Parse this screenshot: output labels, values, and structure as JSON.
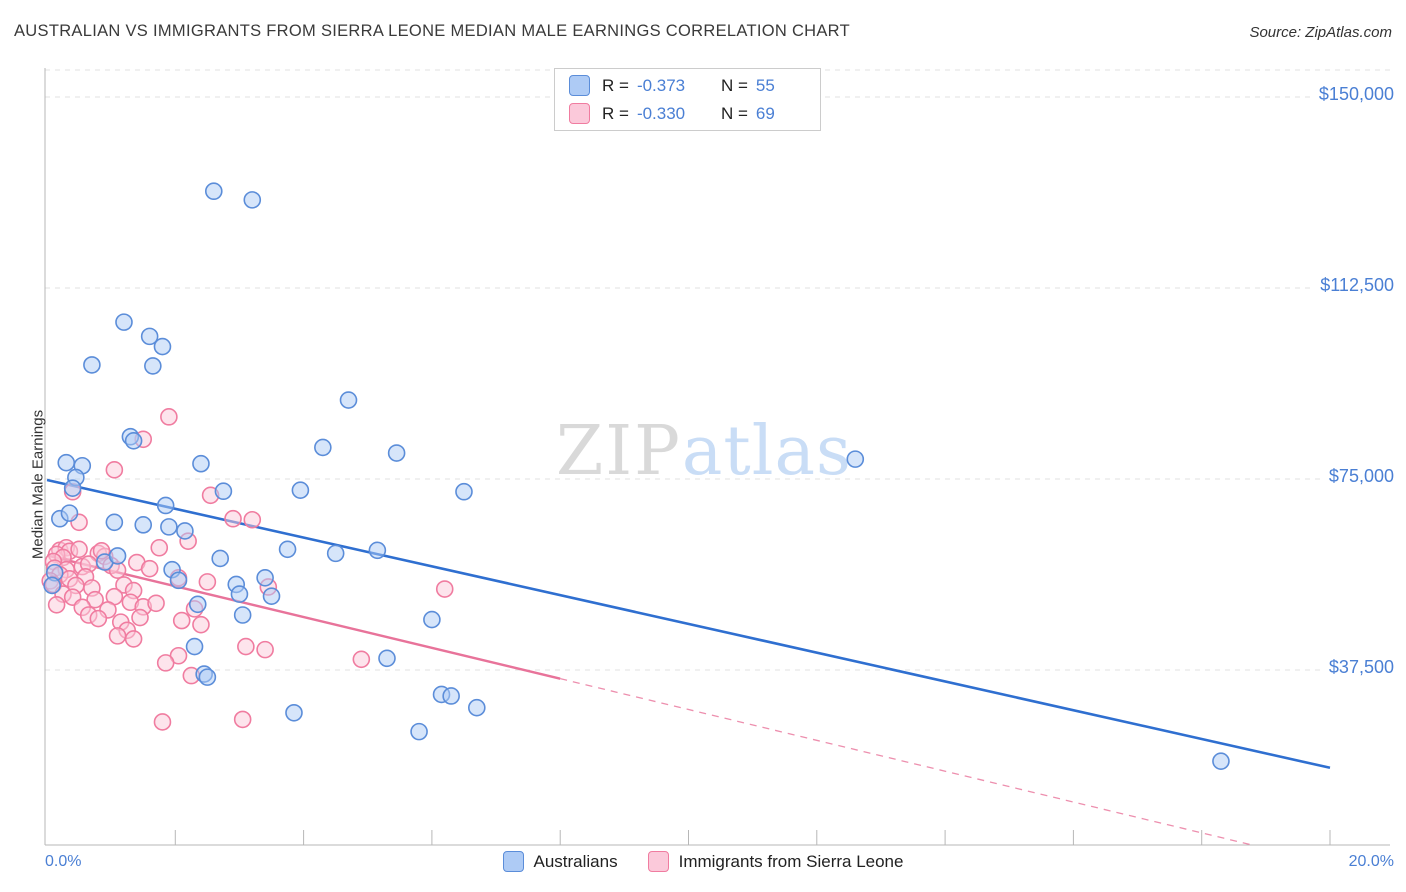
{
  "header": {
    "title": "AUSTRALIAN VS IMMIGRANTS FROM SIERRA LEONE MEDIAN MALE EARNINGS CORRELATION CHART",
    "source": "Source: ZipAtlas.com"
  },
  "stats_legend": {
    "rows": [
      {
        "series": "Australians",
        "r_label": "R =",
        "r_value": "-0.373",
        "n_label": "N =",
        "n_value": "55"
      },
      {
        "series": "Immigrants from Sierra Leone",
        "r_label": "R =",
        "r_value": "-0.330",
        "n_label": "N =",
        "n_value": "69"
      }
    ]
  },
  "watermark": {
    "zip": "ZIP",
    "atlas": "atlas"
  },
  "colors": {
    "blue-stroke": "#5b8dd9",
    "blue-fill": "#aecbf5",
    "pink-stroke": "#f07ca0",
    "pink-fill": "#fbc9da",
    "trend-blue": "#2f6fd0",
    "trend-pink": "#e8739a",
    "label-blue": "#4a7fd4",
    "grid": "#e0e0e0",
    "axis": "#b7b7b7"
  },
  "chart_data": {
    "type": "scatter",
    "title": "AUSTRALIAN VS IMMIGRANTS FROM SIERRA LEONE MEDIAN MALE EARNINGS CORRELATION CHART",
    "x_axis": {
      "label": "",
      "unit": "%",
      "min": 0,
      "max": 20,
      "min_label": "0.0%",
      "max_label": "20.0%",
      "tick_step": 2
    },
    "y_axis": {
      "label": "Median Male Earnings",
      "unit": "$",
      "tick_values": [
        150000,
        112500,
        75000,
        37500
      ],
      "tick_labels": [
        "$150,000",
        "$112,500",
        "$75,000",
        "$37,500"
      ],
      "grid": "dashed-horizontal"
    },
    "legend_position": "top-center-and-bottom-center",
    "series": [
      {
        "name": "Australians",
        "R": -0.373,
        "N": 55,
        "color": "#5b8dd9",
        "points": [
          [
            2.6,
            131500
          ],
          [
            3.2,
            129800
          ],
          [
            1.2,
            105800
          ],
          [
            1.6,
            103000
          ],
          [
            1.65,
            97200
          ],
          [
            1.8,
            101000
          ],
          [
            0.7,
            97400
          ],
          [
            4.7,
            90500
          ],
          [
            1.3,
            83300
          ],
          [
            1.35,
            82500
          ],
          [
            4.3,
            81200
          ],
          [
            5.45,
            80100
          ],
          [
            12.6,
            78900
          ],
          [
            0.3,
            78200
          ],
          [
            0.55,
            77600
          ],
          [
            2.4,
            78000
          ],
          [
            0.45,
            75300
          ],
          [
            0.4,
            73200
          ],
          [
            2.75,
            72600
          ],
          [
            3.95,
            72800
          ],
          [
            6.5,
            72500
          ],
          [
            1.85,
            69800
          ],
          [
            0.2,
            67200
          ],
          [
            1.05,
            66500
          ],
          [
            1.5,
            66000
          ],
          [
            2.15,
            64800
          ],
          [
            1.9,
            65600
          ],
          [
            3.75,
            61200
          ],
          [
            4.5,
            60400
          ],
          [
            5.15,
            61000
          ],
          [
            0.9,
            58700
          ],
          [
            0.12,
            56600
          ],
          [
            1.95,
            57200
          ],
          [
            2.7,
            59400
          ],
          [
            3.4,
            55600
          ],
          [
            2.95,
            54300
          ],
          [
            0.08,
            54100
          ],
          [
            3.0,
            52400
          ],
          [
            3.5,
            52000
          ],
          [
            2.35,
            50400
          ],
          [
            3.05,
            48300
          ],
          [
            6.0,
            47400
          ],
          [
            2.3,
            42100
          ],
          [
            5.3,
            39800
          ],
          [
            2.45,
            36700
          ],
          [
            2.5,
            36100
          ],
          [
            6.15,
            32700
          ],
          [
            6.3,
            32400
          ],
          [
            6.7,
            30100
          ],
          [
            3.85,
            29100
          ],
          [
            5.8,
            25400
          ],
          [
            18.3,
            19600
          ],
          [
            0.35,
            68300
          ],
          [
            1.1,
            59900
          ],
          [
            2.05,
            55100
          ]
        ]
      },
      {
        "name": "Immigrants from Sierra Leone",
        "R": -0.33,
        "N": 69,
        "color": "#f07ca0",
        "points": [
          [
            1.9,
            87200
          ],
          [
            1.5,
            82800
          ],
          [
            1.05,
            76800
          ],
          [
            0.4,
            72500
          ],
          [
            2.55,
            71800
          ],
          [
            0.5,
            66500
          ],
          [
            2.9,
            67200
          ],
          [
            3.2,
            67000
          ],
          [
            0.2,
            61000
          ],
          [
            0.3,
            61500
          ],
          [
            0.35,
            60800
          ],
          [
            0.15,
            60200
          ],
          [
            0.25,
            59600
          ],
          [
            0.5,
            61200
          ],
          [
            0.8,
            60400
          ],
          [
            0.9,
            59800
          ],
          [
            0.85,
            60900
          ],
          [
            1.75,
            61500
          ],
          [
            2.2,
            62800
          ],
          [
            0.1,
            58800
          ],
          [
            0.12,
            57500
          ],
          [
            0.3,
            57200
          ],
          [
            0.55,
            57800
          ],
          [
            0.65,
            58300
          ],
          [
            1.0,
            58000
          ],
          [
            1.1,
            57100
          ],
          [
            1.4,
            58600
          ],
          [
            1.6,
            57400
          ],
          [
            0.2,
            56200
          ],
          [
            0.35,
            55400
          ],
          [
            0.6,
            55800
          ],
          [
            0.05,
            55000
          ],
          [
            0.1,
            54300
          ],
          [
            0.45,
            54100
          ],
          [
            0.7,
            53600
          ],
          [
            1.2,
            54200
          ],
          [
            1.35,
            53100
          ],
          [
            2.05,
            55600
          ],
          [
            2.5,
            54800
          ],
          [
            6.2,
            53400
          ],
          [
            3.45,
            53800
          ],
          [
            0.25,
            52400
          ],
          [
            0.4,
            51800
          ],
          [
            0.75,
            51300
          ],
          [
            1.05,
            51900
          ],
          [
            1.3,
            50800
          ],
          [
            0.15,
            50300
          ],
          [
            0.55,
            49800
          ],
          [
            0.95,
            49300
          ],
          [
            1.5,
            49900
          ],
          [
            1.7,
            50600
          ],
          [
            2.3,
            49500
          ],
          [
            0.65,
            48300
          ],
          [
            0.8,
            47600
          ],
          [
            1.15,
            46900
          ],
          [
            1.45,
            47800
          ],
          [
            2.1,
            47200
          ],
          [
            2.4,
            46400
          ],
          [
            1.25,
            45300
          ],
          [
            1.1,
            44200
          ],
          [
            1.35,
            43600
          ],
          [
            3.1,
            42100
          ],
          [
            3.4,
            41500
          ],
          [
            2.05,
            40300
          ],
          [
            1.85,
            38900
          ],
          [
            2.25,
            36400
          ],
          [
            4.9,
            39600
          ],
          [
            1.8,
            27300
          ],
          [
            3.05,
            27800
          ]
        ]
      }
    ],
    "trend_lines": [
      {
        "series": "Australians",
        "style": "solid",
        "x_start": 0,
        "y_start": 74800,
        "x_end": 20,
        "y_end": 18300
      },
      {
        "series": "Immigrants from Sierra Leone",
        "style": "solid",
        "x_start": 0,
        "y_start": 60000,
        "x_end": 8,
        "y_end": 35800
      },
      {
        "series": "Immigrants from Sierra Leone",
        "style": "dashed",
        "x_start": 8,
        "y_start": 35800,
        "x_end": 18.8,
        "y_end": 3100
      }
    ]
  }
}
